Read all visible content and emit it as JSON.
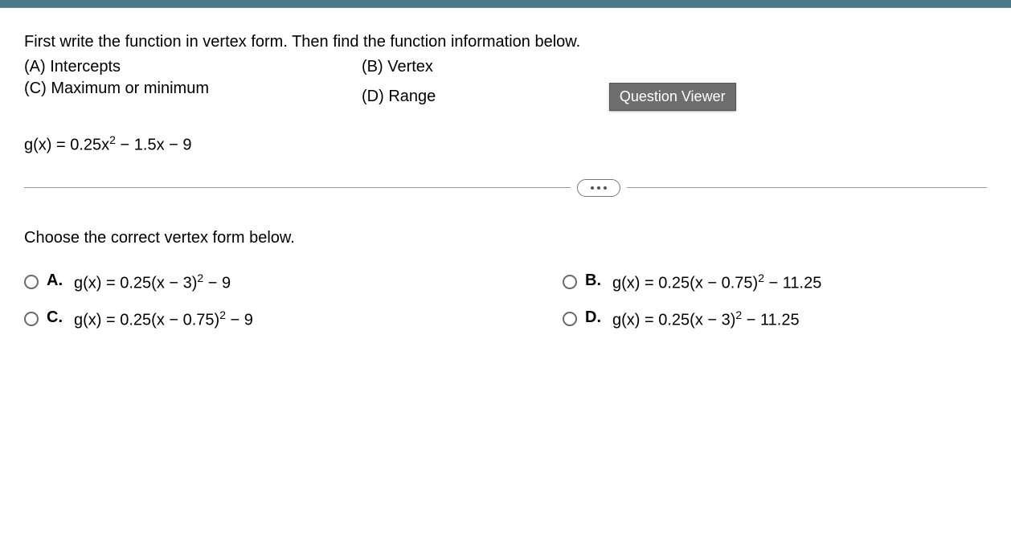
{
  "prompt": {
    "line1": "First write the function in vertex form. Then find the function information below.",
    "row1_left": "(A) Intercepts",
    "row1_right": "(B) Vertex",
    "row2_left": "(C) Maximum or minimum",
    "row2_right": "(D) Range"
  },
  "question_viewer_label": "Question Viewer",
  "equation_html": "g(x) = 0.25x<sup>2</sup> − 1.5x − 9",
  "choose_label": "Choose the correct vertex form below.",
  "options": {
    "A": {
      "letter": "A.",
      "html": "g(x) = 0.25(x − 3)<sup>2</sup> − 9"
    },
    "B": {
      "letter": "B.",
      "html": "g(x) = 0.25(x − 0.75)<sup>2</sup> − 11.25"
    },
    "C": {
      "letter": "C.",
      "html": "g(x) = 0.25(x − 0.75)<sup>2</sup> − 9"
    },
    "D": {
      "letter": "D.",
      "html": "g(x) = 0.25(x − 3)<sup>2</sup> − 11.25"
    }
  },
  "colors": {
    "topbar": "#4a7a8a",
    "text": "#000000",
    "radio_border": "#6a6a6a",
    "divider": "#999999",
    "qviewer_bg": "#6e6e6e",
    "qviewer_text": "#ffffff"
  }
}
